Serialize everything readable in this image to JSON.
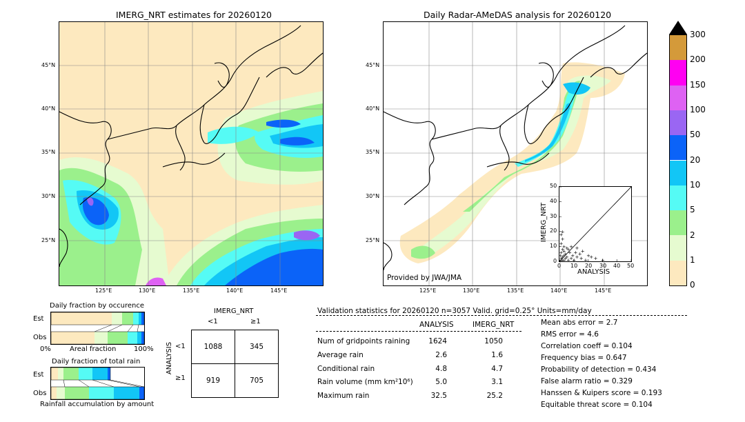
{
  "left_map": {
    "title": "IMERG_NRT estimates for 20260120",
    "lat_ticks": [
      "45°N",
      "40°N",
      "35°N",
      "30°N",
      "25°N"
    ],
    "lon_ticks": [
      "125°E",
      "130°E",
      "135°E",
      "140°E",
      "145°E"
    ]
  },
  "right_map": {
    "title": "Daily Radar-AMeDAS analysis for 20260120",
    "lat_ticks": [
      "45°N",
      "40°N",
      "35°N",
      "30°N",
      "25°N"
    ],
    "lon_ticks": [
      "125°E",
      "130°E",
      "135°E",
      "140°E",
      "145°E"
    ],
    "credit": "Provided by JWA/JMA"
  },
  "colorbar": {
    "labels": [
      "0",
      "1",
      "2",
      "5",
      "10",
      "20",
      "50",
      "100",
      "150",
      "200",
      "300"
    ],
    "colors": [
      "#fde9bf",
      "#e6fbd0",
      "#9bf08c",
      "#55fbf5",
      "#12c6f6",
      "#0b63f8",
      "#9a66f3",
      "#de62f3",
      "#ff00f2",
      "#d49a3a"
    ]
  },
  "chart_data": {
    "type": "scatter",
    "xlabel": "ANALYSIS",
    "ylabel": "IMERG_NRT",
    "xlim": [
      0,
      50
    ],
    "ylim": [
      0,
      50
    ],
    "ticks": [
      "0",
      "10",
      "20",
      "30",
      "40",
      "50"
    ],
    "diagonal": true
  },
  "occurrence": {
    "title": "Daily fraction by occurence",
    "row_labels": [
      "Est",
      "Obs"
    ],
    "axis_left": "0%",
    "axis_mid": "Areal fraction",
    "axis_right": "100%"
  },
  "total_rain": {
    "title": "Daily fraction of total rain",
    "row_labels": [
      "Est",
      "Obs"
    ],
    "footer": "Rainfall accumulation by amount"
  },
  "contingency": {
    "top_label": "IMERG_NRT",
    "col_labels": [
      "<1",
      "≥1"
    ],
    "side_label": "ANALYSIS",
    "row_labels": [
      "<1",
      "≥1"
    ],
    "cells": [
      [
        "1088",
        "345"
      ],
      [
        "919",
        "705"
      ]
    ]
  },
  "validation": {
    "header": "Validation statistics for 20260120  n=3057 Valid. grid=0.25° Units=mm/day",
    "col_analysis": "ANALYSIS",
    "col_imerg": "IMERG_NRT",
    "rows": [
      {
        "label": "Num of gridpoints raining",
        "analysis": "1624",
        "imerg": "1050"
      },
      {
        "label": "Average rain",
        "analysis": "2.6",
        "imerg": "1.6"
      },
      {
        "label": "Conditional rain",
        "analysis": "4.8",
        "imerg": "4.7"
      },
      {
        "label": "Rain volume (mm km²10⁶)",
        "analysis": "5.0",
        "imerg": "3.1"
      },
      {
        "label": "Maximum rain",
        "analysis": "32.5",
        "imerg": "25.2"
      }
    ],
    "scores": [
      "Mean abs error =    2.7",
      "RMS error =    4.6",
      "Correlation coeff =  0.104",
      "Frequency bias =  0.647",
      "Probability of detection =  0.434",
      "False alarm ratio =  0.329",
      "Hanssen & Kuipers score =  0.193",
      "Equitable threat score =  0.104"
    ]
  }
}
